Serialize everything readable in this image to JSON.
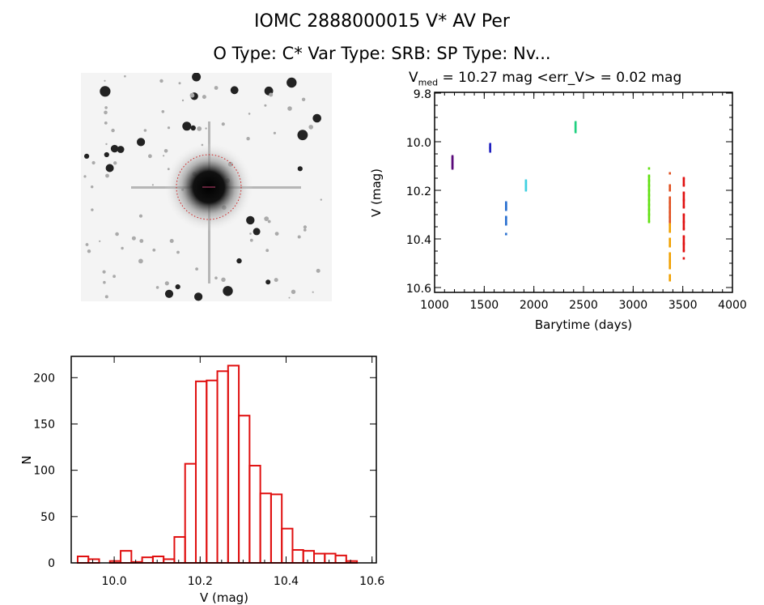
{
  "title": "IOMC 2888000015    V* AV Per",
  "subtitle": "O Type: C*   Var Type: SRB:   SP Type: Nv...",
  "finder_image": {
    "type": "sky-image",
    "description_labels": []
  },
  "chart_data": [
    {
      "type": "scatter",
      "title_prefix": "V",
      "title_sub": "med",
      "title_rest": " = 10.27 mag <err_V> = 0.02 mag",
      "xlabel": "Barytime (days)",
      "ylabel": "V (mag)",
      "xlim": [
        1000,
        4000
      ],
      "ylim": [
        9.8,
        10.6
      ],
      "y_inverted": true,
      "xticks": [
        "1000",
        "1500",
        "2000",
        "2500",
        "3000",
        "3500",
        "4000"
      ],
      "yticks": [
        "9.8",
        "10.0",
        "10.2",
        "10.4",
        "10.6"
      ],
      "series": [
        {
          "color": "#5a0a7a",
          "x": 1180,
          "y": [
            10.06,
            10.07,
            10.08,
            10.09,
            10.1,
            10.11
          ]
        },
        {
          "color": "#2020c0",
          "x": 1560,
          "y": [
            10.01,
            10.02,
            10.025,
            10.03,
            10.04
          ]
        },
        {
          "color": "#2a70d0",
          "x": 1720,
          "y": [
            10.25,
            10.26,
            10.27,
            10.28,
            10.31,
            10.34,
            10.38
          ]
        },
        {
          "color": "#40d0e0",
          "x": 1920,
          "y": [
            10.16,
            10.17,
            10.18,
            10.19,
            10.2
          ]
        },
        {
          "color": "#20d080",
          "x": 2420,
          "y": [
            9.92,
            9.93,
            9.94,
            9.95,
            9.96
          ]
        },
        {
          "color": "#60e010",
          "x": 3160,
          "y": [
            10.11,
            10.14,
            10.16,
            10.18,
            10.2,
            10.22,
            10.24,
            10.26,
            10.28,
            10.3,
            10.33
          ]
        },
        {
          "color": "#e05020",
          "x": 3370,
          "y": [
            10.13,
            10.18,
            10.2,
            10.23,
            10.25,
            10.27,
            10.29,
            10.31,
            10.33
          ]
        },
        {
          "color": "#f0a000",
          "x": 3370,
          "y": [
            10.34,
            10.37,
            10.4,
            10.43,
            10.46,
            10.49,
            10.52,
            10.55,
            10.57
          ]
        },
        {
          "color": "#e01010",
          "x": 3510,
          "y": [
            10.15,
            10.18,
            10.21,
            10.24,
            10.27,
            10.3,
            10.33,
            10.36,
            10.39,
            10.42,
            10.45,
            10.48
          ]
        }
      ]
    },
    {
      "type": "bar",
      "style": "histogram-outline",
      "color": "#e01010",
      "xlabel": "V (mag)",
      "ylabel": "N",
      "xlim": [
        9.9,
        10.61
      ],
      "ylim": [
        0,
        223
      ],
      "bin_start": 9.915,
      "bin_width": 0.025,
      "values": [
        7,
        4,
        0,
        2,
        13,
        1,
        6,
        7,
        4,
        28,
        107,
        196,
        197,
        207,
        213,
        159,
        105,
        75,
        74,
        37,
        14,
        13,
        10,
        10,
        8,
        2
      ],
      "xticks": [
        "10.0",
        "10.2",
        "10.4",
        "10.6"
      ],
      "yticks": [
        "0",
        "50",
        "100",
        "150",
        "200"
      ]
    }
  ]
}
